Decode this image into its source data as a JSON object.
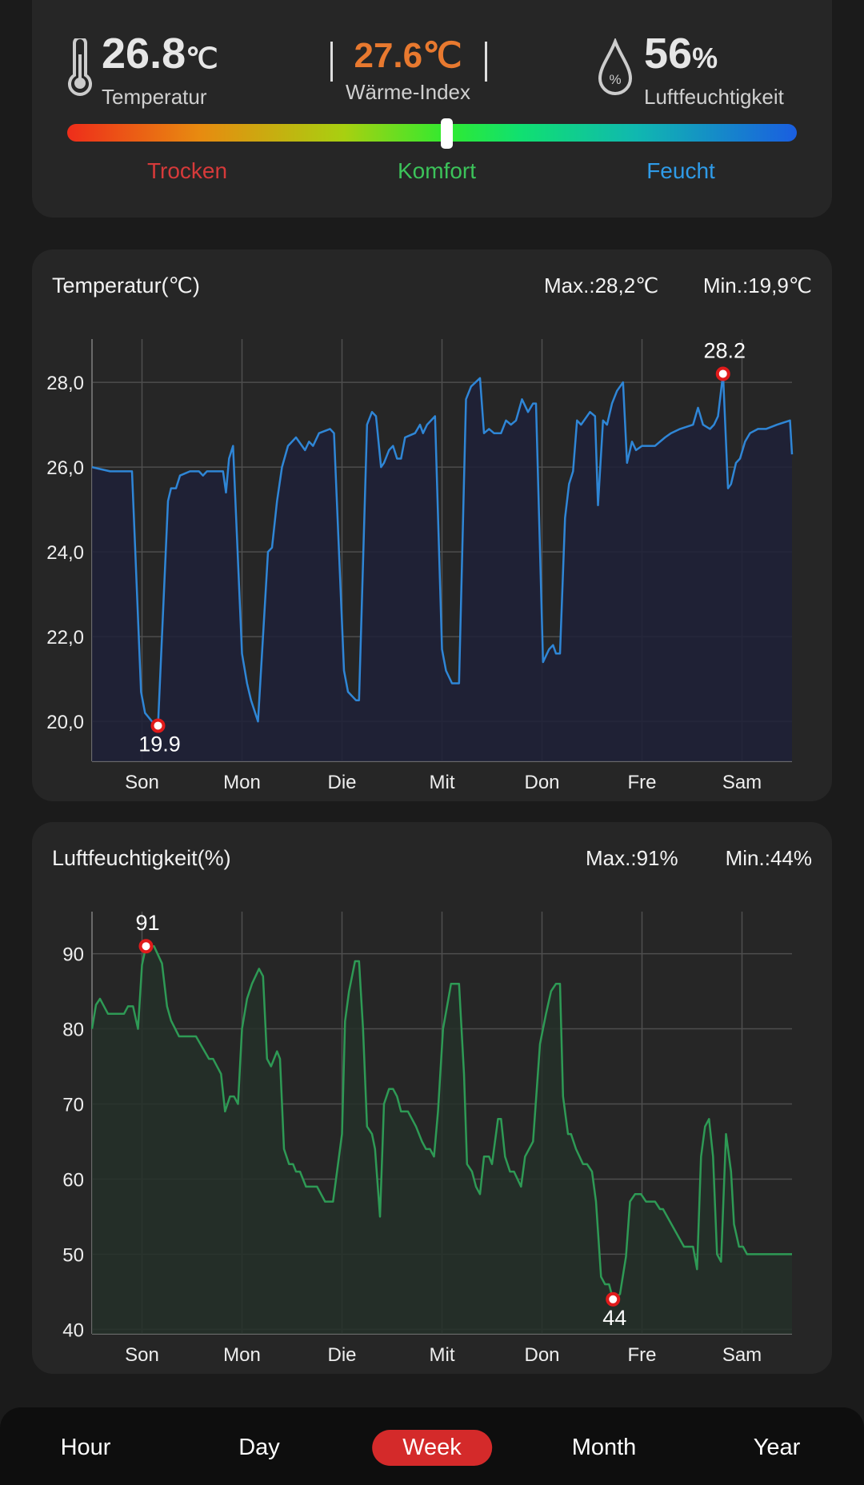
{
  "summary": {
    "temperature_value": "26.8",
    "temperature_unit": "℃",
    "temperature_label": "Temperatur",
    "heat_index_value": "27.6℃",
    "heat_index_label": "Wärme-Index",
    "humidity_value": "56",
    "humidity_unit": "%",
    "humidity_label": "Luftfeuchtigkeit",
    "comfort_scale": {
      "labels": [
        "Trocken",
        "Komfort",
        "Feucht"
      ],
      "label_colors": [
        "#d63a3a",
        "#3cc35a",
        "#2f9be8"
      ],
      "indicator_position": 0.52
    },
    "heat_index_color": "#e8792f"
  },
  "chart_data": [
    {
      "type": "area",
      "title": "Temperatur(℃)",
      "max_label": "Max.:28,2℃",
      "min_label": "Min.:19,9℃",
      "categories": [
        "Son",
        "Mon",
        "Die",
        "Mit",
        "Don",
        "Fre",
        "Sam"
      ],
      "yticks": [
        "20,0",
        "22,0",
        "24,0",
        "26,0",
        "28,0"
      ],
      "ytick_values": [
        20,
        22,
        24,
        26,
        28
      ],
      "ylim": [
        19.06,
        29.02
      ],
      "grid": true,
      "color": "#2f86d6",
      "points": [
        [
          -0.5,
          26.0
        ],
        [
          -0.32,
          25.9
        ],
        [
          -0.1,
          25.9
        ],
        [
          -0.01,
          20.7
        ],
        [
          0.03,
          20.2
        ],
        [
          0.1,
          20.0
        ],
        [
          0.16,
          19.9
        ],
        [
          0.26,
          25.2
        ],
        [
          0.29,
          25.5
        ],
        [
          0.34,
          25.5
        ],
        [
          0.38,
          25.8
        ],
        [
          0.48,
          25.9
        ],
        [
          0.57,
          25.9
        ],
        [
          0.61,
          25.8
        ],
        [
          0.65,
          25.9
        ],
        [
          0.81,
          25.9
        ],
        [
          0.84,
          25.4
        ],
        [
          0.87,
          26.2
        ],
        [
          0.91,
          26.5
        ],
        [
          1.0,
          21.6
        ],
        [
          1.05,
          20.9
        ],
        [
          1.09,
          20.5
        ],
        [
          1.16,
          20.0
        ],
        [
          1.26,
          24.0
        ],
        [
          1.3,
          24.1
        ],
        [
          1.35,
          25.2
        ],
        [
          1.4,
          26.0
        ],
        [
          1.46,
          26.5
        ],
        [
          1.54,
          26.7
        ],
        [
          1.63,
          26.4
        ],
        [
          1.67,
          26.6
        ],
        [
          1.71,
          26.5
        ],
        [
          1.77,
          26.8
        ],
        [
          1.88,
          26.9
        ],
        [
          1.92,
          26.8
        ],
        [
          2.02,
          21.2
        ],
        [
          2.06,
          20.7
        ],
        [
          2.14,
          20.5
        ],
        [
          2.17,
          20.5
        ],
        [
          2.25,
          27.0
        ],
        [
          2.3,
          27.3
        ],
        [
          2.34,
          27.2
        ],
        [
          2.39,
          26.0
        ],
        [
          2.42,
          26.1
        ],
        [
          2.47,
          26.4
        ],
        [
          2.51,
          26.5
        ],
        [
          2.55,
          26.2
        ],
        [
          2.59,
          26.2
        ],
        [
          2.63,
          26.7
        ],
        [
          2.73,
          26.8
        ],
        [
          2.78,
          27.0
        ],
        [
          2.81,
          26.8
        ],
        [
          2.85,
          27.0
        ],
        [
          2.93,
          27.2
        ],
        [
          3.0,
          21.7
        ],
        [
          3.04,
          21.2
        ],
        [
          3.1,
          20.9
        ],
        [
          3.17,
          20.9
        ],
        [
          3.24,
          27.6
        ],
        [
          3.29,
          27.9
        ],
        [
          3.38,
          28.1
        ],
        [
          3.42,
          26.8
        ],
        [
          3.47,
          26.9
        ],
        [
          3.52,
          26.8
        ],
        [
          3.59,
          26.8
        ],
        [
          3.64,
          27.1
        ],
        [
          3.69,
          27.0
        ],
        [
          3.74,
          27.1
        ],
        [
          3.8,
          27.6
        ],
        [
          3.86,
          27.3
        ],
        [
          3.91,
          27.5
        ],
        [
          3.94,
          27.5
        ],
        [
          4.01,
          21.4
        ],
        [
          4.07,
          21.7
        ],
        [
          4.11,
          21.8
        ],
        [
          4.14,
          21.6
        ],
        [
          4.18,
          21.6
        ],
        [
          4.23,
          24.8
        ],
        [
          4.27,
          25.6
        ],
        [
          4.31,
          25.9
        ],
        [
          4.35,
          27.1
        ],
        [
          4.39,
          27.0
        ],
        [
          4.48,
          27.3
        ],
        [
          4.53,
          27.2
        ],
        [
          4.56,
          25.1
        ],
        [
          4.61,
          27.1
        ],
        [
          4.65,
          27.0
        ],
        [
          4.7,
          27.5
        ],
        [
          4.75,
          27.8
        ],
        [
          4.81,
          28.0
        ],
        [
          4.85,
          26.1
        ],
        [
          4.9,
          26.6
        ],
        [
          4.94,
          26.4
        ],
        [
          5.0,
          26.5
        ],
        [
          5.13,
          26.5
        ],
        [
          5.23,
          26.7
        ],
        [
          5.29,
          26.8
        ],
        [
          5.38,
          26.9
        ],
        [
          5.51,
          27.0
        ],
        [
          5.56,
          27.4
        ],
        [
          5.61,
          27.0
        ],
        [
          5.68,
          26.9
        ],
        [
          5.72,
          27.0
        ],
        [
          5.76,
          27.2
        ],
        [
          5.81,
          28.2
        ],
        [
          5.86,
          25.5
        ],
        [
          5.89,
          25.6
        ],
        [
          5.94,
          26.1
        ],
        [
          5.98,
          26.2
        ],
        [
          6.03,
          26.6
        ],
        [
          6.08,
          26.8
        ],
        [
          6.16,
          26.9
        ],
        [
          6.24,
          26.9
        ],
        [
          6.35,
          27.0
        ],
        [
          6.48,
          27.1
        ],
        [
          6.5,
          26.3
        ]
      ],
      "max_point": {
        "x": 5.81,
        "y": 28.2,
        "label": "28.2"
      },
      "min_point": {
        "x": 0.16,
        "y": 19.9,
        "label": "19.9"
      }
    },
    {
      "type": "area",
      "title": "Luftfeuchtigkeit(%)",
      "max_label": "Max.:91%",
      "min_label": "Min.:44%",
      "categories": [
        "Son",
        "Mon",
        "Die",
        "Mit",
        "Don",
        "Fre",
        "Sam"
      ],
      "yticks": [
        "40",
        "50",
        "60",
        "70",
        "80",
        "90"
      ],
      "ytick_values": [
        40,
        50,
        60,
        70,
        80,
        90
      ],
      "ylim": [
        39.4,
        95.6
      ],
      "grid": true,
      "color": "#2e9a55",
      "points": [
        [
          -0.5,
          80
        ],
        [
          -0.46,
          83.2
        ],
        [
          -0.42,
          84
        ],
        [
          -0.34,
          82
        ],
        [
          -0.18,
          82
        ],
        [
          -0.14,
          83
        ],
        [
          -0.09,
          83
        ],
        [
          -0.04,
          80
        ],
        [
          0,
          88.5
        ],
        [
          0.04,
          91
        ],
        [
          0.12,
          91
        ],
        [
          0.2,
          88.7
        ],
        [
          0.25,
          83
        ],
        [
          0.29,
          81.1
        ],
        [
          0.37,
          79
        ],
        [
          0.54,
          79
        ],
        [
          0.67,
          76
        ],
        [
          0.71,
          76
        ],
        [
          0.79,
          74
        ],
        [
          0.83,
          69
        ],
        [
          0.88,
          71
        ],
        [
          0.92,
          71
        ],
        [
          0.96,
          70
        ],
        [
          1.0,
          80
        ],
        [
          1.05,
          84
        ],
        [
          1.1,
          86
        ],
        [
          1.17,
          88
        ],
        [
          1.21,
          87
        ],
        [
          1.25,
          76
        ],
        [
          1.29,
          75
        ],
        [
          1.35,
          77
        ],
        [
          1.38,
          76
        ],
        [
          1.42,
          64
        ],
        [
          1.47,
          62
        ],
        [
          1.51,
          62
        ],
        [
          1.54,
          61
        ],
        [
          1.58,
          61
        ],
        [
          1.64,
          59
        ],
        [
          1.75,
          59
        ],
        [
          1.83,
          57
        ],
        [
          1.91,
          57
        ],
        [
          2.0,
          66
        ],
        [
          2.03,
          81
        ],
        [
          2.07,
          85
        ],
        [
          2.13,
          89
        ],
        [
          2.17,
          89
        ],
        [
          2.21,
          80
        ],
        [
          2.25,
          67
        ],
        [
          2.3,
          66
        ],
        [
          2.33,
          64
        ],
        [
          2.38,
          55
        ],
        [
          2.42,
          70
        ],
        [
          2.47,
          72
        ],
        [
          2.51,
          72
        ],
        [
          2.55,
          71
        ],
        [
          2.59,
          69
        ],
        [
          2.66,
          69
        ],
        [
          2.74,
          67
        ],
        [
          2.8,
          65
        ],
        [
          2.84,
          64
        ],
        [
          2.88,
          64
        ],
        [
          2.92,
          63
        ],
        [
          2.96,
          69
        ],
        [
          3.01,
          80
        ],
        [
          3.06,
          83.7
        ],
        [
          3.09,
          86
        ],
        [
          3.17,
          86
        ],
        [
          3.22,
          74
        ],
        [
          3.25,
          62
        ],
        [
          3.3,
          61
        ],
        [
          3.34,
          59
        ],
        [
          3.38,
          58
        ],
        [
          3.42,
          63
        ],
        [
          3.47,
          63
        ],
        [
          3.5,
          62
        ],
        [
          3.56,
          68
        ],
        [
          3.59,
          68
        ],
        [
          3.63,
          63
        ],
        [
          3.68,
          61
        ],
        [
          3.72,
          61
        ],
        [
          3.79,
          59
        ],
        [
          3.83,
          63
        ],
        [
          3.91,
          65
        ],
        [
          3.98,
          78
        ],
        [
          4.04,
          82
        ],
        [
          4.09,
          85
        ],
        [
          4.14,
          86
        ],
        [
          4.18,
          86
        ],
        [
          4.21,
          71
        ],
        [
          4.26,
          66
        ],
        [
          4.29,
          66
        ],
        [
          4.34,
          64
        ],
        [
          4.41,
          62
        ],
        [
          4.45,
          62
        ],
        [
          4.5,
          61
        ],
        [
          4.54,
          57
        ],
        [
          4.59,
          47
        ],
        [
          4.63,
          46
        ],
        [
          4.67,
          46
        ],
        [
          4.71,
          44
        ],
        [
          4.78,
          44.7
        ],
        [
          4.84,
          49.7
        ],
        [
          4.88,
          57
        ],
        [
          4.93,
          58
        ],
        [
          4.99,
          58
        ],
        [
          5.04,
          57
        ],
        [
          5.13,
          57
        ],
        [
          5.18,
          56
        ],
        [
          5.21,
          56
        ],
        [
          5.42,
          51
        ],
        [
          5.51,
          51
        ],
        [
          5.55,
          48
        ],
        [
          5.59,
          63
        ],
        [
          5.63,
          67
        ],
        [
          5.67,
          68
        ],
        [
          5.71,
          63
        ],
        [
          5.75,
          50
        ],
        [
          5.79,
          49
        ],
        [
          5.84,
          66
        ],
        [
          5.89,
          61
        ],
        [
          5.92,
          54
        ],
        [
          5.97,
          51
        ],
        [
          6.01,
          51
        ],
        [
          6.05,
          50
        ],
        [
          6.5,
          50
        ]
      ],
      "max_point": {
        "x": 0.04,
        "y": 91,
        "label": "91"
      },
      "min_point": {
        "x": 4.71,
        "y": 44,
        "label": "44"
      }
    }
  ],
  "nav": {
    "tabs": [
      {
        "label": "Hour"
      },
      {
        "label": "Day"
      },
      {
        "label": "Week"
      },
      {
        "label": "Month"
      },
      {
        "label": "Year"
      }
    ],
    "active": "Week",
    "active_color": "#d42a2a"
  }
}
